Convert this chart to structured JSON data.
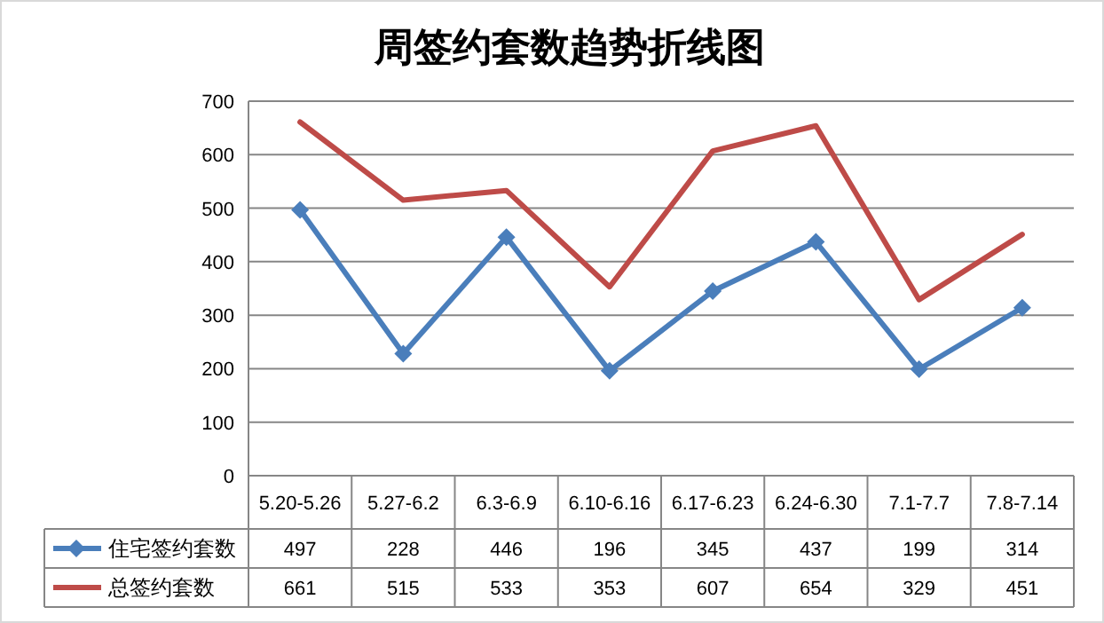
{
  "chart_data": {
    "type": "line",
    "title": "周签约套数趋势折线图",
    "categories": [
      "5.20-5.26",
      "5.27-6.2",
      "6.3-6.9",
      "6.10-6.16",
      "6.17-6.23",
      "6.24-6.30",
      "7.1-7.7",
      "7.8-7.14"
    ],
    "series": [
      {
        "name": "住宅签约套数",
        "color": "#4a7ebb",
        "marker": "diamond",
        "values": [
          497,
          228,
          446,
          196,
          345,
          437,
          199,
          314
        ]
      },
      {
        "name": "总签约套数",
        "color": "#be4b48",
        "marker": "none",
        "values": [
          661,
          515,
          533,
          353,
          607,
          654,
          329,
          451
        ]
      }
    ],
    "ylim": [
      0,
      700
    ],
    "yticks": [
      0,
      100,
      200,
      300,
      400,
      500,
      600,
      700
    ],
    "grid": "y",
    "legend": "bottom left",
    "data_labels": true
  }
}
